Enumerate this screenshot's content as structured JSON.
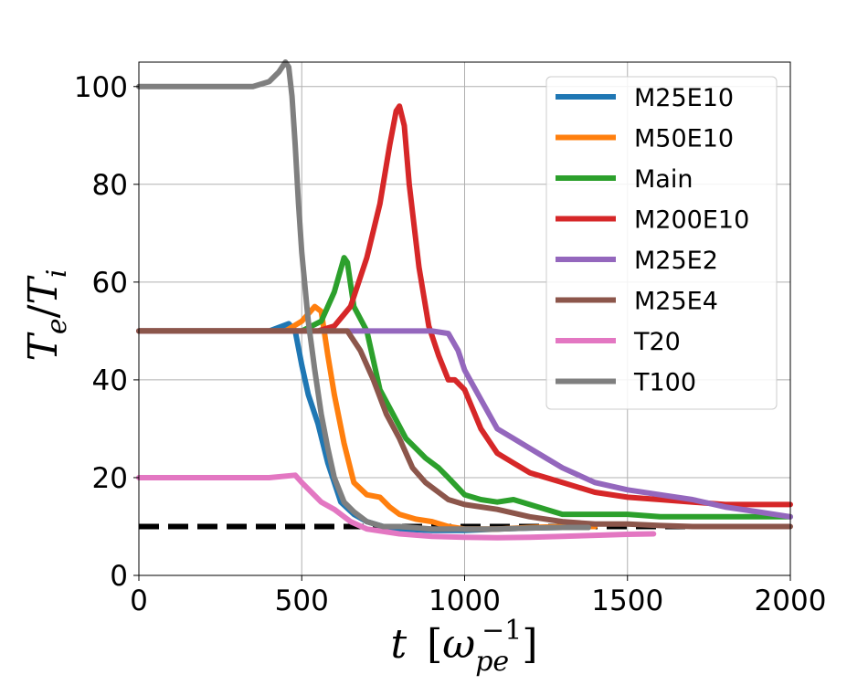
{
  "chart_data": {
    "type": "line",
    "title": "",
    "xlabel": {
      "var": "t",
      "unit_base": "ω",
      "unit_sub": "pe",
      "unit_sup": "−1"
    },
    "ylabel": {
      "main": "T",
      "sub1": "e",
      "sep": "/",
      "main2": "T",
      "sub2": "i"
    },
    "xlim": [
      0,
      2000
    ],
    "ylim": [
      0,
      105
    ],
    "xticks": [
      0,
      500,
      1000,
      1500,
      2000
    ],
    "yticks": [
      0,
      20,
      40,
      60,
      80,
      100
    ],
    "xtick_labels": [
      "0",
      "500",
      "1000",
      "1500",
      "2000"
    ],
    "ytick_labels": [
      "0",
      "20",
      "40",
      "60",
      "80",
      "100"
    ],
    "grid": true,
    "legend_position": "top-right",
    "series": [
      {
        "name": "M25E10",
        "color": "#1f77b4",
        "x": [
          0,
          400,
          460,
          480,
          500,
          520,
          550,
          580,
          620,
          660,
          700,
          750,
          800,
          900,
          1000,
          1100,
          1200,
          1300,
          1380
        ],
        "y": [
          50,
          50,
          51.5,
          50,
          43,
          37,
          31,
          23,
          15,
          12.5,
          11,
          10,
          9.5,
          9.2,
          9.2,
          9.5,
          9.7,
          9.8,
          9.8
        ]
      },
      {
        "name": "M50E10",
        "color": "#ff7f0e",
        "x": [
          0,
          450,
          500,
          540,
          560,
          580,
          600,
          630,
          660,
          700,
          740,
          770,
          800,
          850,
          900,
          950,
          1000,
          1100,
          1200,
          1300,
          1400
        ],
        "y": [
          50,
          50,
          52,
          55,
          54,
          45,
          37,
          27,
          19,
          16.5,
          16,
          14,
          12.5,
          11.5,
          11,
          10,
          9.5,
          9.5,
          9.8,
          10,
          10
        ]
      },
      {
        "name": "Main",
        "color": "#2ca02c",
        "x": [
          0,
          500,
          560,
          600,
          630,
          640,
          660,
          700,
          740,
          780,
          820,
          850,
          880,
          920,
          950,
          1000,
          1050,
          1100,
          1150,
          1200,
          1300,
          1400,
          1500,
          1600,
          1700,
          1800,
          1900,
          2000
        ],
        "y": [
          50,
          50,
          52,
          58,
          65,
          64,
          55,
          50,
          38,
          33,
          28,
          26,
          24,
          22,
          20,
          16.5,
          15.5,
          15,
          15.5,
          14.5,
          12.5,
          12.5,
          12.5,
          12,
          12,
          12,
          12,
          12
        ]
      },
      {
        "name": "M200E10",
        "color": "#d62728",
        "x": [
          0,
          550,
          600,
          650,
          700,
          740,
          770,
          790,
          800,
          815,
          830,
          860,
          890,
          920,
          950,
          970,
          1000,
          1050,
          1100,
          1150,
          1200,
          1300,
          1400,
          1500,
          1600,
          1700,
          1800,
          1900,
          2000
        ],
        "y": [
          50,
          50,
          51,
          55,
          65,
          76,
          88,
          95,
          96,
          92,
          80,
          63,
          51,
          45,
          40,
          40,
          38,
          30,
          25,
          23,
          21,
          19,
          17,
          16,
          15.5,
          15,
          14.5,
          14.5,
          14.5
        ]
      },
      {
        "name": "M25E2",
        "color": "#9467bd",
        "x": [
          0,
          900,
          950,
          980,
          1000,
          1050,
          1100,
          1150,
          1200,
          1250,
          1300,
          1400,
          1500,
          1600,
          1700,
          1800,
          1900,
          2000
        ],
        "y": [
          50,
          50,
          49.5,
          46,
          42,
          36,
          30,
          28,
          26,
          24,
          22,
          19,
          17.5,
          16.5,
          15.5,
          14,
          13,
          12
        ]
      },
      {
        "name": "M25E4",
        "color": "#8c564b",
        "x": [
          0,
          600,
          640,
          680,
          720,
          760,
          800,
          840,
          880,
          920,
          950,
          1000,
          1100,
          1200,
          1300,
          1400,
          1500,
          1600,
          1700,
          1800,
          1900,
          2000
        ],
        "y": [
          50,
          50,
          50,
          46,
          40,
          33,
          28,
          22,
          19,
          17,
          15.5,
          14.5,
          13.5,
          12,
          11,
          10.5,
          10.5,
          10.2,
          10,
          10,
          10,
          10
        ]
      },
      {
        "name": "T20",
        "color": "#e377c2",
        "x": [
          0,
          400,
          480,
          500,
          530,
          560,
          600,
          650,
          700,
          800,
          900,
          1000,
          1100,
          1200,
          1300,
          1400,
          1500,
          1580
        ],
        "y": [
          20,
          20,
          20.5,
          19,
          17,
          15,
          13.5,
          11,
          9.5,
          8.5,
          8,
          7.8,
          7.7,
          7.8,
          8,
          8.2,
          8.4,
          8.5
        ]
      },
      {
        "name": "T100",
        "color": "#7f7f7f",
        "x": [
          0,
          350,
          400,
          430,
          450,
          460,
          470,
          480,
          490,
          500,
          520,
          540,
          560,
          580,
          600,
          630,
          660,
          700,
          750,
          800,
          900,
          1000,
          1100,
          1200,
          1300,
          1380
        ],
        "y": [
          100,
          100,
          101,
          103,
          105,
          104,
          98,
          88,
          76,
          66,
          52,
          42,
          33,
          26,
          20,
          15,
          13,
          11,
          10,
          10,
          9.5,
          9.5,
          9.5,
          9.7,
          9.8,
          9.8
        ]
      }
    ],
    "reference_lines": [
      {
        "name": "baseline",
        "y": 10,
        "color": "#000000",
        "style": "dashed"
      }
    ]
  }
}
